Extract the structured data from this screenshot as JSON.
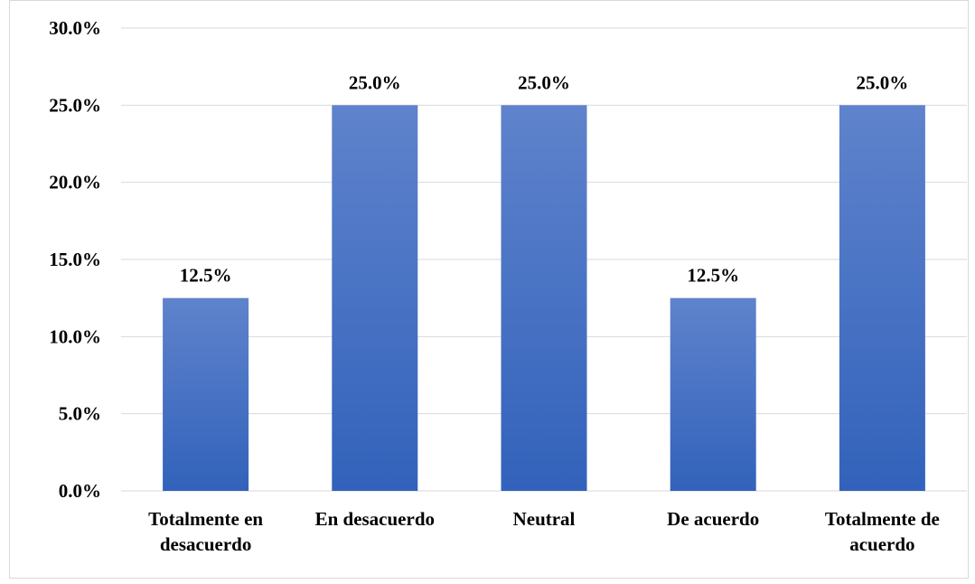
{
  "chart_data": {
    "type": "bar",
    "categories": [
      [
        "Totalmente en",
        "desacuerdo"
      ],
      [
        "En desacuerdo"
      ],
      [
        "Neutral"
      ],
      [
        "De acuerdo"
      ],
      [
        "Totalmente de",
        "acuerdo"
      ]
    ],
    "values": [
      12.5,
      25.0,
      25.0,
      12.5,
      25.0
    ],
    "data_labels": [
      "12.5%",
      "25.0%",
      "25.0%",
      "12.5%",
      "25.0%"
    ],
    "ylim": [
      0,
      30
    ],
    "yticks": [
      "0.0%",
      "5.0%",
      "10.0%",
      "15.0%",
      "20.0%",
      "25.0%",
      "30.0%"
    ],
    "grid": true,
    "legend": "none",
    "colors": {
      "bar_top": "#5f83cc",
      "bar_bottom": "#3262bb",
      "grid": "#d9d9d9"
    }
  }
}
